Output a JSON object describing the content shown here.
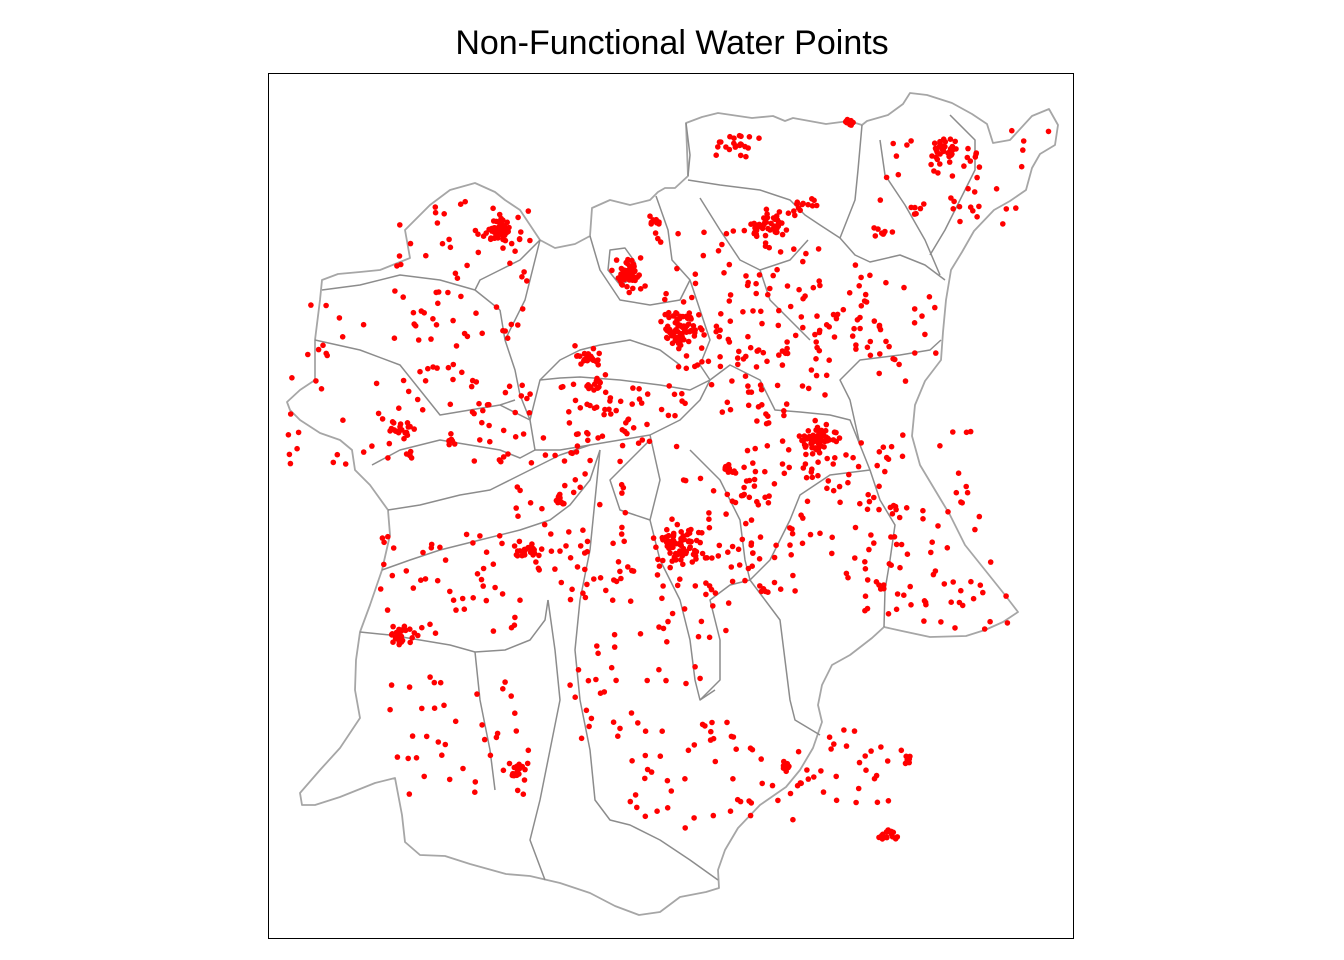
{
  "map": {
    "title": "Non-Functional Water Points",
    "point_color": "#ff0000",
    "boundary_color": "#8c8c8c",
    "outer_boundary_color": "#a6a6a6",
    "background_color": "#ffffff",
    "symbol": "filled-circle",
    "legend": "none"
  }
}
